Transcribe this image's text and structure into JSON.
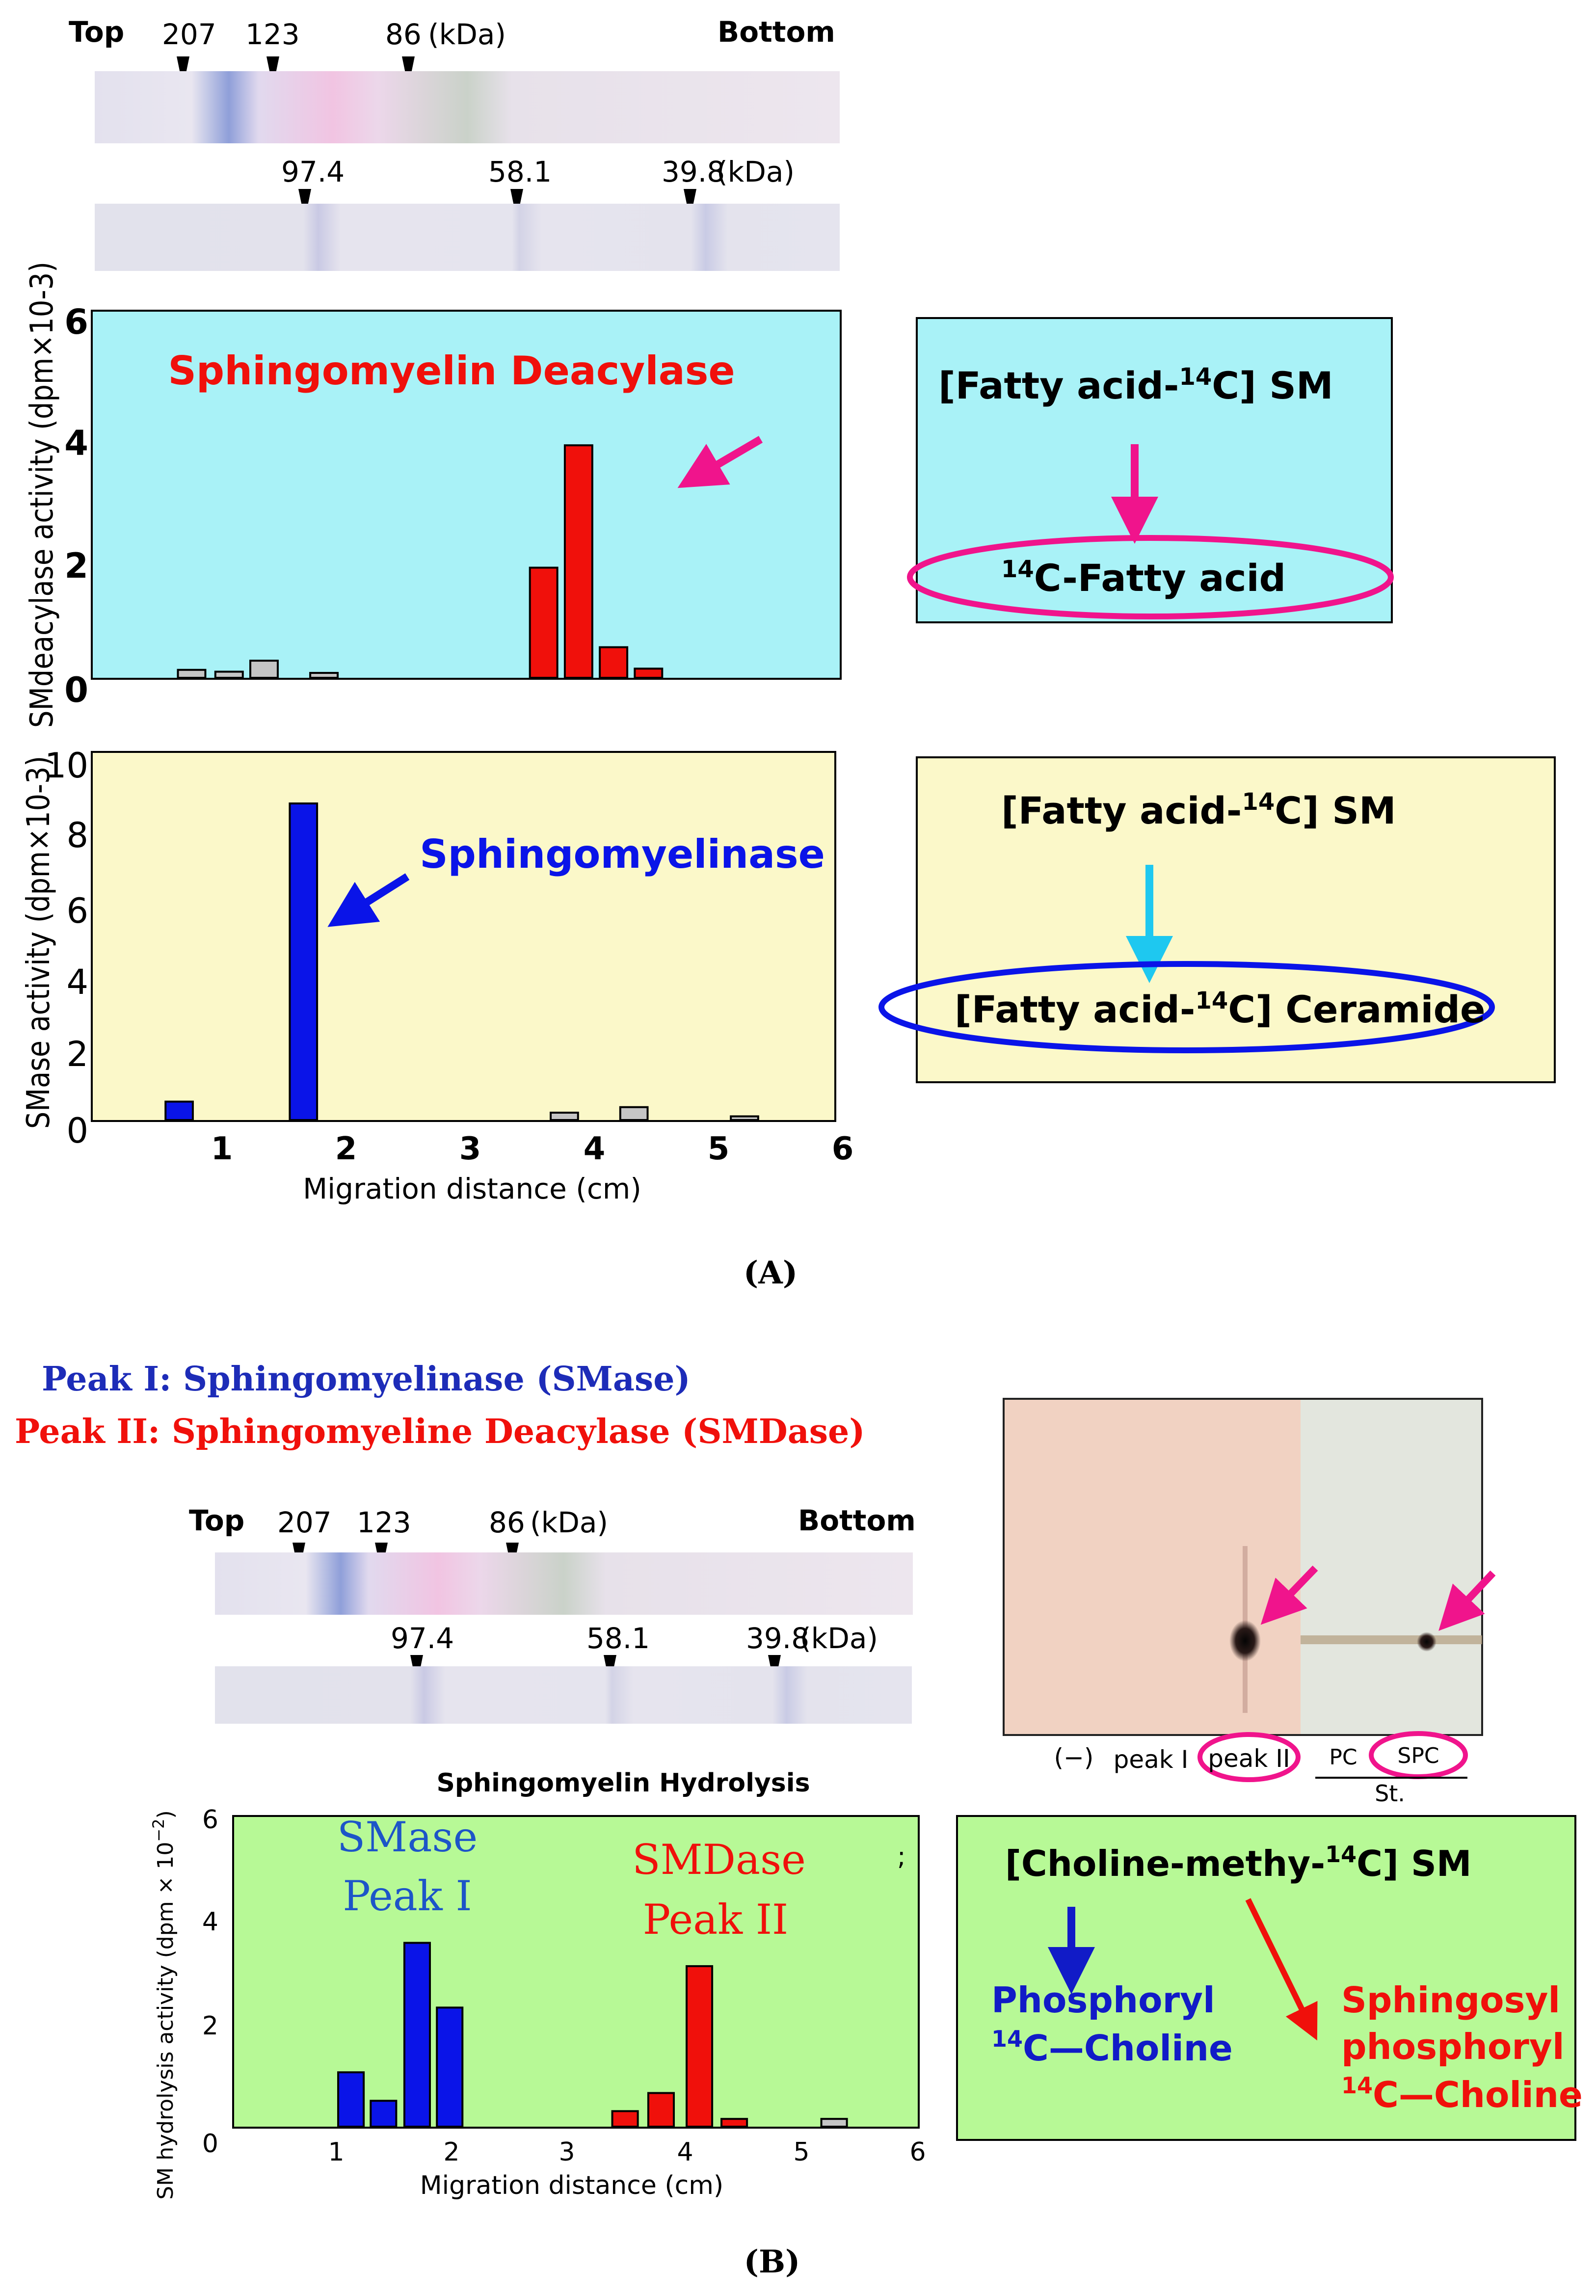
{
  "colors": {
    "cyan_panel": "#a9f2f7",
    "yellow_panel": "#fbf8c9",
    "green_panel": "#b7f996",
    "bar_red": "#f0100b",
    "bar_blue": "#0a14e8",
    "bar_gray": "#c5c5c5",
    "magenta": "#f0148c",
    "navy": "#111bc7"
  },
  "panelA": {
    "label": "(A)",
    "gel": {
      "top_label": "Top",
      "bottom_label": "Bottom",
      "markers_row1": [
        "207",
        "123",
        "86"
      ],
      "markers_row2": [
        "97.4",
        "58.1",
        "39.8"
      ],
      "unit": "(kDa)"
    },
    "smd": {
      "ylabel": "SMdeacylase activity (dpm×10-3)",
      "title": "Sphingomyelin Deacylase",
      "reaction_substrate": "[Fatty acid-",
      "reaction_iso": "14",
      "reaction_substrate_tail": "C] SM",
      "product_iso": "14",
      "product_text": "C-Fatty acid"
    },
    "sma": {
      "ylabel": "SMase activity (dpm×10-3)",
      "title": "Sphingomyelinase",
      "reaction_substrate": "[Fatty acid-",
      "reaction_iso": "14",
      "reaction_substrate_tail": "C] SM",
      "product_head": "[Fatty acid-",
      "product_iso": "14",
      "product_tail": "C] Ceramide"
    },
    "xlabel": "Migration distance (cm)"
  },
  "panelB": {
    "label": "(B)",
    "legend": {
      "peak1": "Peak I:  Sphingomyelinase (SMase)",
      "peak2": "Peak II: Sphingomyeline Deacylase  (SMDase)"
    },
    "gel": {
      "top_label": "Top",
      "bottom_label": "Bottom",
      "markers_row1": [
        "207",
        "123",
        "86"
      ],
      "markers_row2": [
        "97.4",
        "58.1",
        "39.8"
      ],
      "unit": "(kDa)"
    },
    "tlc": {
      "lanes": [
        "(−)",
        "peak I",
        "peak II",
        "PC",
        "SPC"
      ],
      "std_label": "St."
    },
    "chart_title": "Sphingomyelin Hydrolysis",
    "ylabel": "SM hydrolysis activity  (dpm × 10",
    "ylabel_exp": "−2",
    "ylabel_close": ")",
    "smase_label_1": "SMase",
    "smase_label_2": "Peak I",
    "smdase_label_1": "SMDase",
    "smdase_label_2": "Peak II",
    "stray_mark": ";",
    "xlabel": "Migration distance (cm)",
    "reaction": {
      "substrate_head": "[Choline-methy-",
      "substrate_iso": "14",
      "substrate_tail": "C] SM",
      "left_1": "Phosphoryl",
      "left_iso": "14",
      "left_2": "C—Choline",
      "right_1": "Sphingosyl",
      "right_2": "phosphoryl",
      "right_iso": "14",
      "right_3": "C—Choline"
    }
  },
  "chart_data": [
    {
      "type": "bar",
      "title": "Sphingomyelin Deacylase",
      "xlabel": "",
      "ylabel": "SMdeacylase activity (dpm×10-3)",
      "xlim": [
        0,
        6
      ],
      "ylim": [
        0,
        6
      ],
      "yticks": [
        0,
        2,
        4,
        6
      ],
      "bar_width": 0.22,
      "series": [
        {
          "name": "fractions",
          "x": [
            0.8,
            1.1,
            1.38,
            1.86
          ],
          "values": [
            0.13,
            0.1,
            0.28,
            0.08
          ],
          "color": "#c5c5c5"
        },
        {
          "name": "SM deacylase peak",
          "x": [
            3.62,
            3.9,
            4.18,
            4.46
          ],
          "values": [
            1.8,
            3.8,
            0.5,
            0.15
          ],
          "color": "#f0100b"
        }
      ]
    },
    {
      "type": "bar",
      "title": "Sphingomyelinase",
      "xlabel": "Migration distance (cm)",
      "ylabel": "SMase activity (dpm×10-3)",
      "xlim": [
        0,
        6
      ],
      "ylim": [
        0,
        10
      ],
      "yticks": [
        0,
        2,
        4,
        6,
        8,
        10
      ],
      "xticks": [
        1,
        2,
        3,
        4,
        5,
        6
      ],
      "bar_width": 0.22,
      "series": [
        {
          "name": "SMase peak",
          "x": [
            0.66,
            1.66
          ],
          "values": [
            0.5,
            8.6
          ],
          "color": "#0a14e8"
        },
        {
          "name": "fractions",
          "x": [
            3.76,
            4.32,
            5.21
          ],
          "values": [
            0.2,
            0.35,
            0.1
          ],
          "color": "#c5c5c5"
        }
      ]
    },
    {
      "type": "bar",
      "title": "Sphingomyelin Hydrolysis",
      "xlabel": "Migration distance (cm)",
      "ylabel": "SM hydrolysis activity (dpm × 10−2)",
      "xlim": [
        0,
        6
      ],
      "ylim": [
        0,
        6
      ],
      "yticks": [
        0,
        2,
        4,
        6
      ],
      "xticks": [
        1,
        2,
        3,
        4,
        5,
        6
      ],
      "bar_width": 0.22,
      "series": [
        {
          "name": "SMase Peak I",
          "x": [
            1.12,
            1.4,
            1.69,
            1.97
          ],
          "values": [
            1.05,
            0.5,
            3.55,
            2.3
          ],
          "color": "#0a14e8"
        },
        {
          "name": "SMDase Peak II",
          "x": [
            3.48,
            3.79,
            4.12,
            4.42
          ],
          "values": [
            0.3,
            0.65,
            3.1,
            0.15
          ],
          "color": "#f0100b"
        },
        {
          "name": "fractions",
          "x": [
            5.28
          ],
          "values": [
            0.15
          ],
          "color": "#c5c5c5"
        }
      ]
    }
  ]
}
